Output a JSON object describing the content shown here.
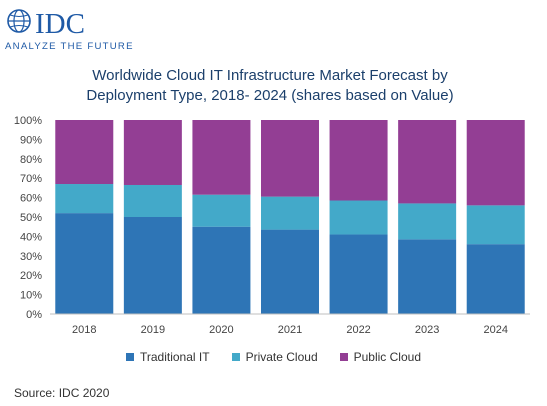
{
  "logo": {
    "wordmark": "IDC",
    "tagline": "ANALYZE THE FUTURE",
    "brand_color": "#1f5aa6"
  },
  "source": "Source: IDC 2020",
  "chart_data": {
    "type": "bar",
    "stacked": true,
    "title_lines": [
      "Worldwide Cloud IT Infrastructure Market Forecast by",
      "Deployment Type, 2018- 2024 (shares based on Value)"
    ],
    "xlabel": "",
    "ylabel": "",
    "ylim": [
      0,
      100
    ],
    "y_ticks": [
      0,
      10,
      20,
      30,
      40,
      50,
      60,
      70,
      80,
      90,
      100
    ],
    "y_tick_labels": [
      "0%",
      "10%",
      "20%",
      "30%",
      "40%",
      "50%",
      "60%",
      "70%",
      "80%",
      "90%",
      "100%"
    ],
    "grid": false,
    "legend_position": "bottom",
    "categories": [
      "2018",
      "2019",
      "2020",
      "2021",
      "2022",
      "2023",
      "2024"
    ],
    "series": [
      {
        "name": "Traditional IT",
        "color": "#2e75b6",
        "values": [
          52,
          50,
          45,
          43.5,
          41,
          38.5,
          36
        ]
      },
      {
        "name": "Private Cloud",
        "color": "#43a9c9",
        "values": [
          15,
          16.5,
          16.5,
          17,
          17.5,
          18.5,
          20
        ]
      },
      {
        "name": "Public Cloud",
        "color": "#933e94",
        "values": [
          33,
          33.5,
          38.5,
          39.5,
          41.5,
          43,
          44
        ]
      }
    ]
  }
}
